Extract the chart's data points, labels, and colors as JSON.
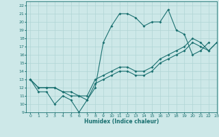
{
  "title": "",
  "xlabel": "Humidex (Indice chaleur)",
  "xlim": [
    -0.5,
    23
  ],
  "ylim": [
    9,
    22.5
  ],
  "xticks": [
    0,
    1,
    2,
    3,
    4,
    5,
    6,
    7,
    8,
    9,
    10,
    11,
    12,
    13,
    14,
    15,
    16,
    17,
    18,
    19,
    20,
    21,
    22,
    23
  ],
  "yticks": [
    9,
    10,
    11,
    12,
    13,
    14,
    15,
    16,
    17,
    18,
    19,
    20,
    21,
    22
  ],
  "bg_color": "#cde8e8",
  "grid_color": "#b0d4d4",
  "line_color": "#1a7070",
  "line1_x": [
    0,
    1,
    2,
    3,
    4,
    5,
    6,
    7,
    8,
    9,
    10,
    11,
    12,
    13,
    14,
    15,
    16,
    17,
    18,
    19,
    20,
    21,
    22
  ],
  "line1_y": [
    13,
    11.5,
    11.5,
    10,
    11,
    10.5,
    9,
    10.5,
    12,
    17.5,
    19.5,
    21,
    21,
    20.5,
    19.5,
    20,
    20,
    21.5,
    19,
    18.5,
    16,
    16.5,
    17.5
  ],
  "line2_x": [
    0,
    1,
    2,
    3,
    4,
    5,
    6,
    7,
    8,
    9,
    10,
    11,
    12,
    13,
    14,
    15,
    16,
    17,
    18,
    19,
    20,
    21,
    22,
    23
  ],
  "line2_y": [
    13,
    12,
    12,
    12,
    11.5,
    11.5,
    11,
    11,
    13,
    13.5,
    14,
    14.5,
    14.5,
    14,
    14,
    14.5,
    15.5,
    16,
    16.5,
    17,
    18,
    17.5,
    16.5,
    17.5
  ],
  "line3_x": [
    0,
    1,
    2,
    3,
    4,
    5,
    6,
    7,
    8,
    9,
    10,
    11,
    12,
    13,
    14,
    15,
    16,
    17,
    18,
    19,
    20,
    21,
    22,
    23
  ],
  "line3_y": [
    13,
    12,
    12,
    12,
    11.5,
    11,
    11,
    10.5,
    12.5,
    13.0,
    13.5,
    14.0,
    14.0,
    13.5,
    13.5,
    14.0,
    15.0,
    15.5,
    16.0,
    16.5,
    17.5,
    17.0,
    16.5,
    17.5
  ]
}
